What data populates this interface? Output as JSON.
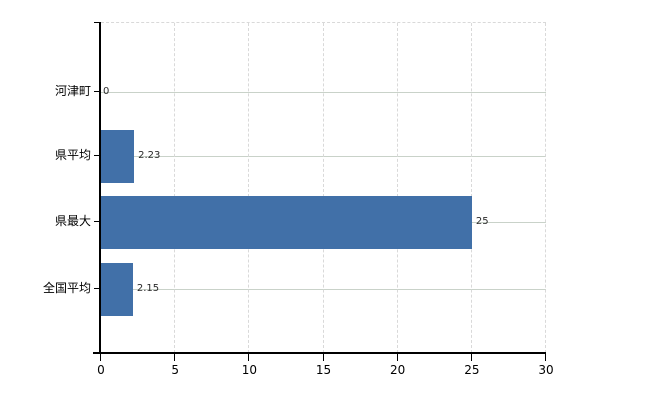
{
  "chart_data": {
    "type": "bar",
    "orientation": "horizontal",
    "title": "",
    "xlabel": "",
    "ylabel": "",
    "categories": [
      "河津町",
      "県平均",
      "県最大",
      "全国平均"
    ],
    "values": [
      0,
      2.23,
      25,
      2.15
    ],
    "value_labels": [
      "0",
      "2.23",
      "25",
      "2.15"
    ],
    "xlim": [
      0,
      30
    ],
    "x_ticks": [
      0,
      5,
      10,
      15,
      20,
      25,
      30
    ],
    "grid": true,
    "legend": false,
    "colors": {
      "bar": "#4170a8",
      "axis": "#000000",
      "gridline_vertical": "#d9d9d9",
      "gridline_horizontal": "#c9d2c9",
      "category_label": "#000000",
      "value_label": "#2b2b2b",
      "background": "#ffffff"
    }
  }
}
